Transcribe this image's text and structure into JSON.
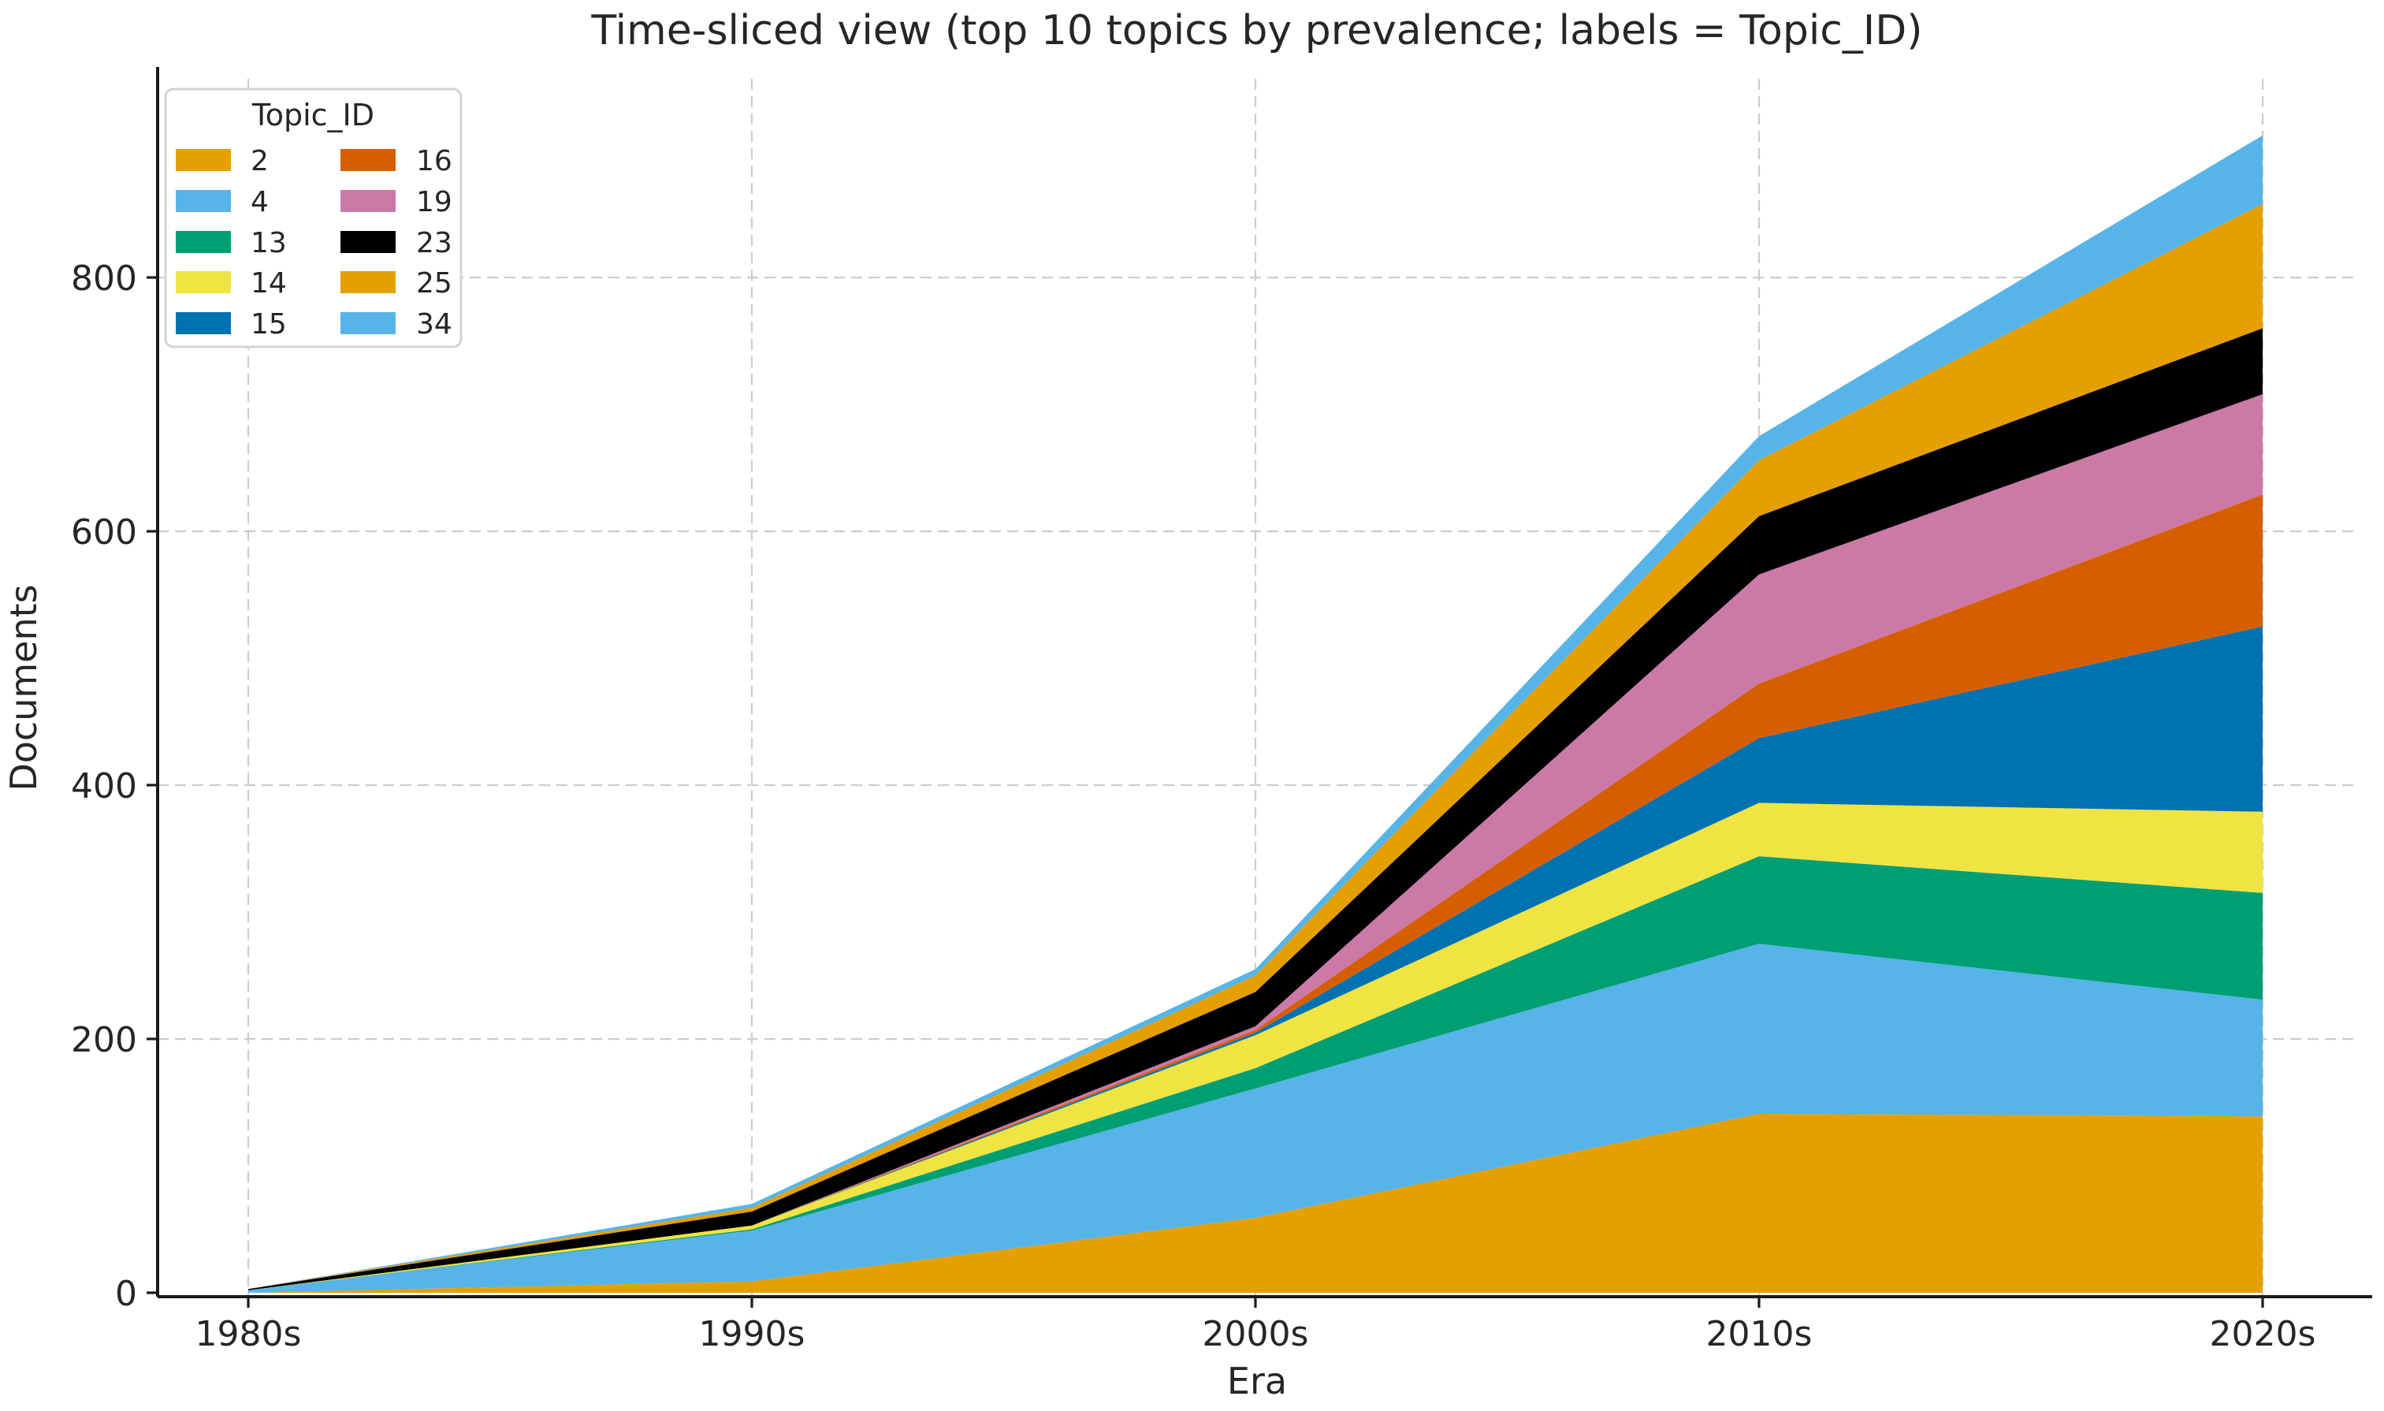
{
  "chart_data": {
    "type": "area",
    "stacked": true,
    "title": "Time-sliced view (top 10 topics by prevalence; labels = Topic_ID)",
    "xlabel": "Era",
    "ylabel": "Documents",
    "categories": [
      "1980s",
      "1990s",
      "2000s",
      "2010s",
      "2020s"
    ],
    "yticks": [
      0,
      200,
      400,
      600,
      800
    ],
    "ylim": [
      0,
      956
    ],
    "grid": "dashed gridlines on both axes",
    "legend": {
      "title": "Topic_ID",
      "position": "upper left",
      "columns": 2,
      "entries": [
        "2",
        "4",
        "13",
        "14",
        "15",
        "16",
        "19",
        "23",
        "25",
        "34"
      ]
    },
    "series": [
      {
        "name": "2",
        "color": "#E69F00",
        "values": [
          0,
          9,
          59,
          141,
          139
        ]
      },
      {
        "name": "4",
        "color": "#56B4E9",
        "values": [
          2,
          40,
          102,
          134,
          92
        ]
      },
      {
        "name": "13",
        "color": "#009E73",
        "values": [
          0,
          1,
          16,
          69,
          84
        ]
      },
      {
        "name": "14",
        "color": "#F0E442",
        "values": [
          0,
          3,
          26,
          42,
          64
        ]
      },
      {
        "name": "15",
        "color": "#0072B2",
        "values": [
          0,
          0,
          2,
          51,
          146
        ]
      },
      {
        "name": "16",
        "color": "#D55E00",
        "values": [
          0,
          0,
          2,
          43,
          104
        ]
      },
      {
        "name": "19",
        "color": "#CC79A7",
        "values": [
          0,
          0,
          3,
          86,
          79
        ]
      },
      {
        "name": "23",
        "color": "#000000",
        "values": [
          1,
          11,
          27,
          46,
          52
        ]
      },
      {
        "name": "25",
        "color": "#E69F00",
        "values": [
          0,
          3,
          13,
          44,
          98
        ]
      },
      {
        "name": "34",
        "color": "#56B4E9",
        "values": [
          0,
          3,
          5,
          19,
          54
        ]
      }
    ],
    "totals_by_era": [
      3,
      70,
      255,
      675,
      912
    ],
    "axis_color": "#1a1a1a",
    "gridline_color": "#cccccc",
    "legend_border_color": "#d3d3d3"
  }
}
